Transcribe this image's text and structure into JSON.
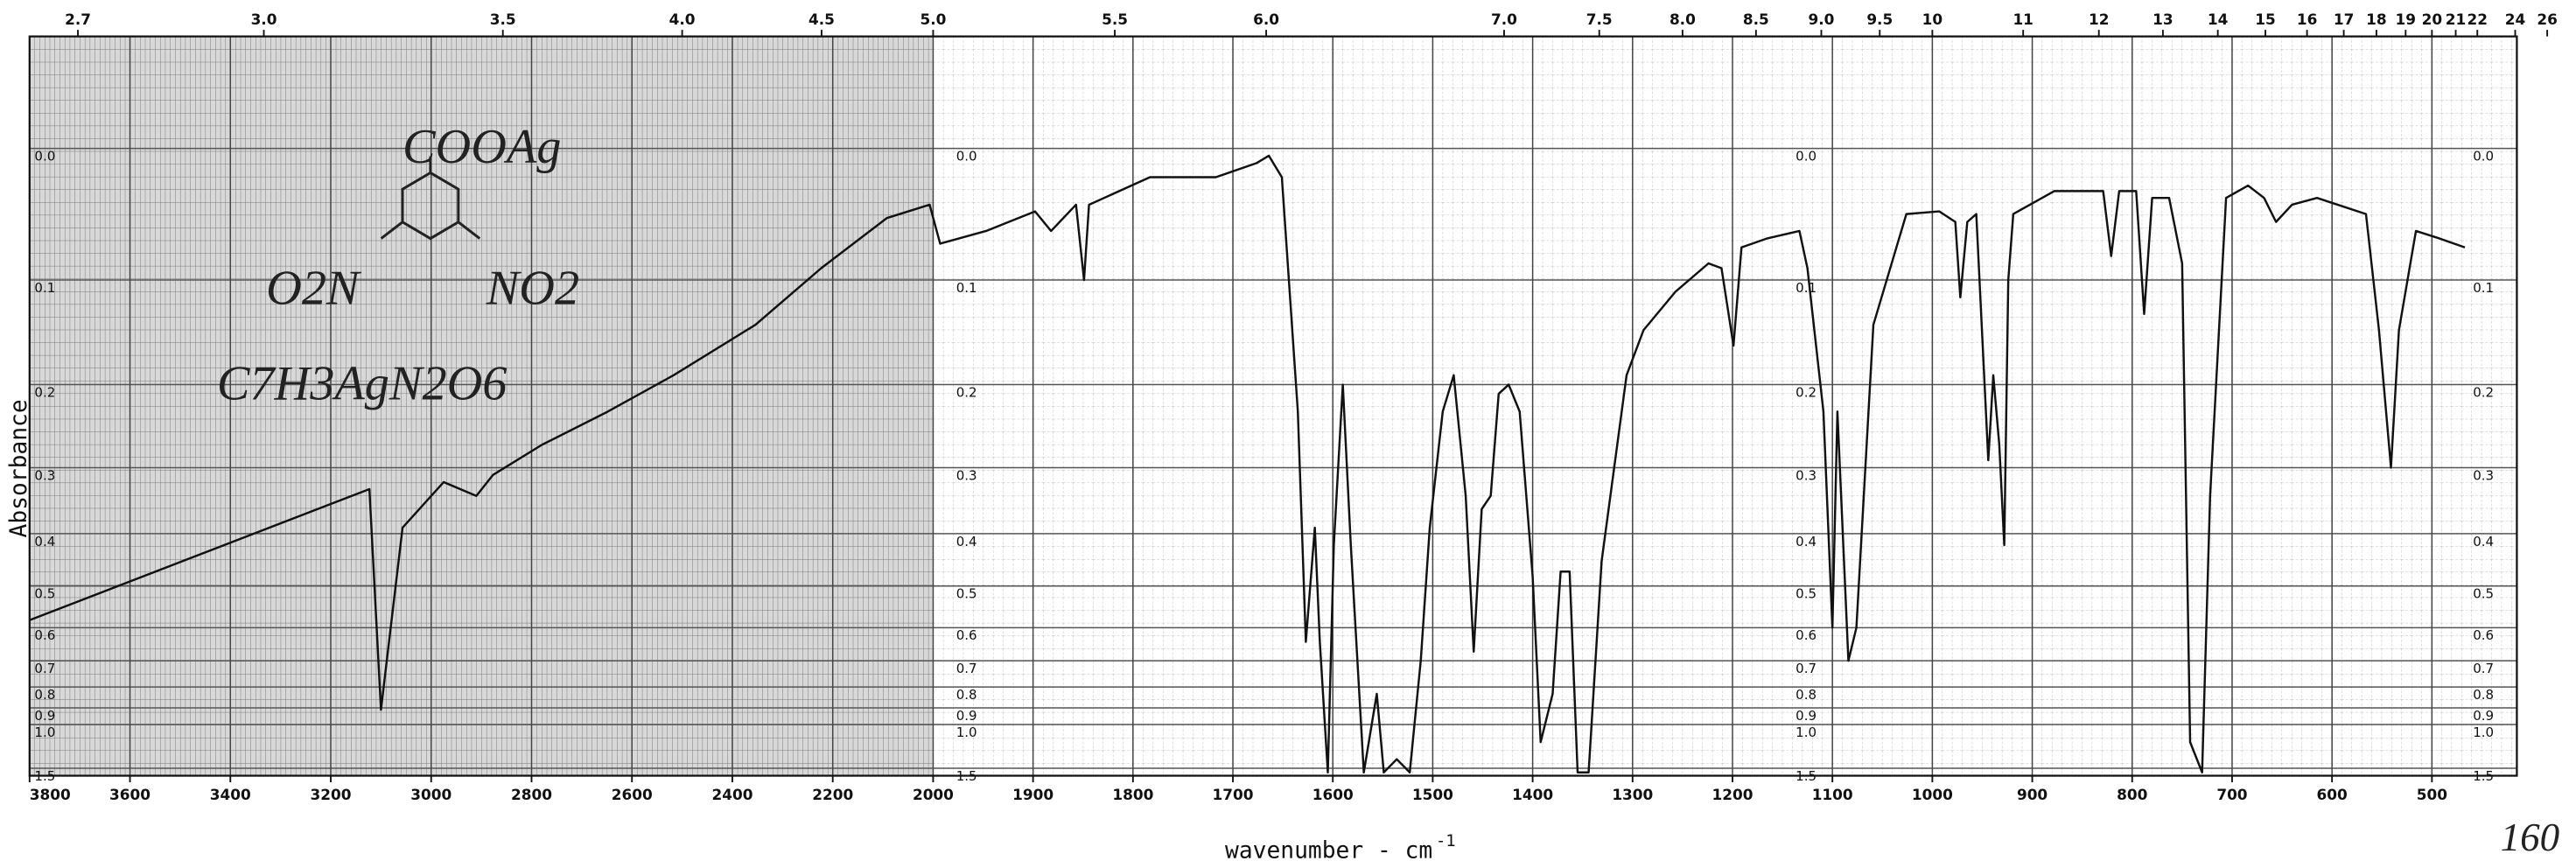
{
  "chart_data": {
    "type": "line",
    "x_label": "wavenumber - cm",
    "x_label_sup": "-1",
    "y_label": "Absorbance",
    "y_scale": "transmittance",
    "xlim": [
      3800,
      415
    ],
    "x_break": 2000,
    "ylim": [
      -0.07,
      1.7
    ],
    "xticks": [
      3800,
      3600,
      3400,
      3200,
      3000,
      2800,
      2600,
      2400,
      2200,
      2000,
      1900,
      1800,
      1700,
      1600,
      1500,
      1400,
      1300,
      1200,
      1100,
      1000,
      900,
      800,
      700,
      600,
      500
    ],
    "x2ticks": [
      2.7,
      {
        "value": 3,
        "label": "3.0"
      },
      3.5,
      {
        "value": 4,
        "label": "4.0"
      },
      4.5,
      {
        "value": 5,
        "label": "5.0"
      },
      5.5,
      {
        "value": 6,
        "label": "6.0"
      },
      {
        "value": 7,
        "label": "7.0"
      },
      7.5,
      {
        "value": 8,
        "label": "8.0"
      },
      8.5,
      {
        "value": 9,
        "label": "9.0"
      },
      9.5,
      10,
      11,
      12,
      13,
      14,
      15,
      16,
      17,
      18,
      19,
      20,
      21,
      22,
      24,
      26
    ],
    "yticks": [
      {
        "value": 0,
        "label": "0.0"
      },
      0.1,
      0.2,
      0.3,
      0.4,
      0.5,
      0.6,
      0.7,
      0.8,
      0.9,
      {
        "value": 1,
        "label": "1.0"
      },
      1.5
    ],
    "grid": true,
    "annotations": [
      "COOAg",
      "O2N",
      "NO2",
      "C7H3AgN2O6",
      "160"
    ],
    "series": [
      {
        "color": "#111111",
        "x": [
          3800,
          3123,
          3100,
          3057,
          2975,
          2910,
          2877,
          2779,
          2648,
          2517,
          2354,
          2223,
          2092,
          2007,
          1993,
          1947,
          1898,
          1882,
          1857,
          1849,
          1844,
          1783,
          1717,
          1676,
          1664,
          1651,
          1635,
          1627,
          1618,
          1613,
          1605,
          1599,
          1590,
          1582,
          1569,
          1556,
          1549,
          1536,
          1523,
          1512,
          1503,
          1490,
          1479,
          1467,
          1459,
          1451,
          1442,
          1434,
          1424,
          1413,
          1400,
          1392,
          1380,
          1372,
          1363,
          1355,
          1344,
          1331,
          1306,
          1289,
          1257,
          1224,
          1211,
          1199,
          1191,
          1166,
          1133,
          1125,
          1109,
          1100,
          1095,
          1084,
          1076,
          1059,
          1026,
          993,
          977,
          972,
          965,
          956,
          944,
          939,
          933,
          928,
          924,
          919,
          878,
          829,
          821,
          813,
          796,
          788,
          780,
          763,
          750,
          742,
          730,
          722,
          706,
          684,
          668,
          656,
          640,
          615,
          566,
          553,
          541,
          533,
          516,
          492,
          467
        ],
        "values": [
          0.58,
          0.33,
          0.91,
          0.39,
          0.32,
          0.34,
          0.31,
          0.27,
          0.23,
          0.19,
          0.14,
          0.09,
          0.05,
          0.04,
          0.07,
          0.06,
          0.045,
          0.06,
          0.04,
          0.1,
          0.04,
          0.02,
          0.02,
          0.01,
          0.005,
          0.02,
          0.23,
          0.64,
          0.39,
          0.64,
          1.6,
          0.42,
          0.2,
          0.42,
          1.6,
          0.83,
          1.6,
          1.34,
          1.6,
          0.7,
          0.39,
          0.23,
          0.19,
          0.34,
          0.67,
          0.36,
          0.34,
          0.21,
          0.2,
          0.23,
          0.48,
          1.14,
          0.83,
          0.47,
          0.47,
          1.6,
          1.6,
          0.45,
          0.19,
          0.145,
          0.11,
          0.086,
          0.09,
          0.16,
          0.073,
          0.066,
          0.06,
          0.09,
          0.23,
          0.6,
          0.23,
          0.7,
          0.6,
          0.14,
          0.047,
          0.045,
          0.053,
          0.115,
          0.053,
          0.047,
          0.29,
          0.19,
          0.27,
          0.42,
          0.1,
          0.047,
          0.03,
          0.03,
          0.08,
          0.03,
          0.03,
          0.13,
          0.035,
          0.035,
          0.086,
          1.14,
          1.6,
          0.34,
          0.035,
          0.026,
          0.035,
          0.053,
          0.04,
          0.035,
          0.047,
          0.145,
          0.3,
          0.145,
          0.06,
          0.066,
          0.073
        ]
      }
    ]
  }
}
